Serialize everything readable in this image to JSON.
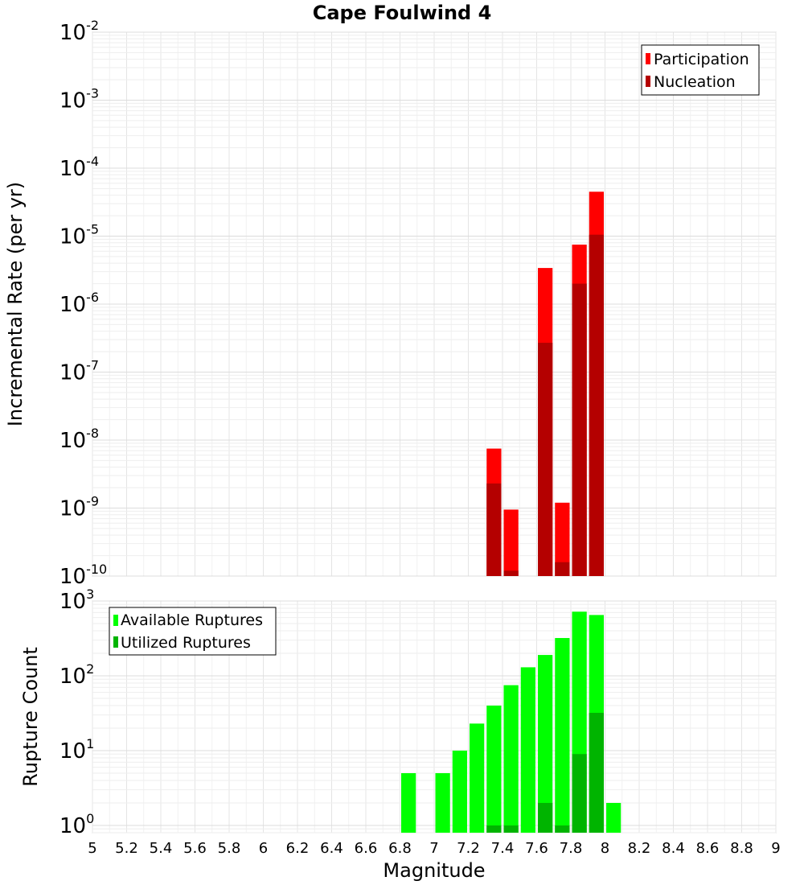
{
  "chart_data": [
    {
      "type": "bar",
      "title": "Cape Foulwind 4",
      "xlabel": "",
      "ylabel": "Incremental Rate (per yr)",
      "y_scale": "log",
      "ylim": [
        1e-10,
        0.01
      ],
      "xlim": [
        5,
        9
      ],
      "bar_width": 0.1,
      "grid": true,
      "legend_position": "top-right",
      "y_ticks": [
        {
          "base": "10",
          "exp": "-2",
          "value": 0.01
        },
        {
          "base": "10",
          "exp": "-3",
          "value": 0.001
        },
        {
          "base": "10",
          "exp": "-4",
          "value": 0.0001
        },
        {
          "base": "10",
          "exp": "-5",
          "value": 1e-05
        },
        {
          "base": "10",
          "exp": "-6",
          "value": 1e-06
        },
        {
          "base": "10",
          "exp": "-7",
          "value": 1e-07
        },
        {
          "base": "10",
          "exp": "-8",
          "value": 1e-08
        },
        {
          "base": "10",
          "exp": "-9",
          "value": 1e-09
        },
        {
          "base": "10",
          "exp": "-10",
          "value": 1e-10
        }
      ],
      "series": [
        {
          "name": "Participation",
          "color": "#ff0000",
          "x": [
            7.35,
            7.45,
            7.65,
            7.75,
            7.85,
            7.95
          ],
          "values": [
            7.5e-09,
            9.5e-10,
            3.4e-06,
            1.2e-09,
            7.5e-06,
            4.5e-05
          ]
        },
        {
          "name": "Nucleation",
          "color": "#b40000",
          "x": [
            7.35,
            7.45,
            7.65,
            7.75,
            7.85,
            7.95
          ],
          "values": [
            2.3e-09,
            1.2e-10,
            2.7e-07,
            1.6e-10,
            2e-06,
            1.05e-05
          ]
        }
      ]
    },
    {
      "type": "bar",
      "title": "",
      "xlabel": "Magnitude",
      "ylabel": "Rupture Count",
      "y_scale": "log",
      "ylim": [
        0.8,
        1000
      ],
      "xlim": [
        5,
        9
      ],
      "bar_width": 0.1,
      "grid": true,
      "legend_position": "top-left",
      "x_ticks": [
        "5",
        "5.2",
        "5.4",
        "5.6",
        "5.8",
        "6",
        "6.2",
        "6.4",
        "6.6",
        "6.8",
        "7",
        "7.2",
        "7.4",
        "7.6",
        "7.8",
        "8",
        "8.2",
        "8.4",
        "8.6",
        "8.8",
        "9"
      ],
      "y_ticks": [
        {
          "base": "10",
          "exp": "3",
          "value": 1000
        },
        {
          "base": "10",
          "exp": "2",
          "value": 100
        },
        {
          "base": "10",
          "exp": "1",
          "value": 10
        },
        {
          "base": "10",
          "exp": "0",
          "value": 1
        }
      ],
      "series": [
        {
          "name": "Available Ruptures",
          "color": "#00ff00",
          "x": [
            6.85,
            7.05,
            7.15,
            7.25,
            7.35,
            7.45,
            7.55,
            7.65,
            7.75,
            7.85,
            7.95,
            8.05
          ],
          "values": [
            5,
            5,
            10,
            23,
            40,
            75,
            130,
            190,
            320,
            720,
            650,
            2
          ]
        },
        {
          "name": "Utilized Ruptures",
          "color": "#00b400",
          "x": [
            7.35,
            7.45,
            7.65,
            7.75,
            7.85,
            7.95
          ],
          "values": [
            1,
            1,
            2,
            1,
            9,
            32
          ]
        }
      ]
    }
  ]
}
